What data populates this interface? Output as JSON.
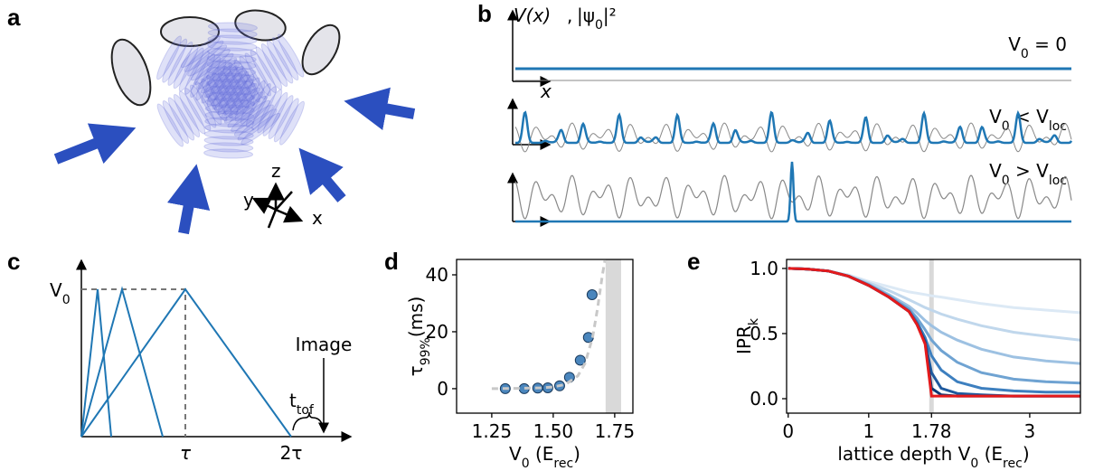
{
  "panels": {
    "a": {
      "label": "a",
      "axes": [
        "z",
        "y",
        "x"
      ]
    },
    "b": {
      "label": "b",
      "potential_label": "V(x)",
      "separator": ",",
      "density_label": [
        "|ψ",
        "0",
        "|²"
      ],
      "x_label": "x",
      "rows": [
        [
          "V",
          "0",
          " = 0"
        ],
        [
          "V",
          "0",
          " < V",
          "loc"
        ],
        [
          "V",
          "0",
          " > V",
          "loc"
        ]
      ]
    },
    "c": {
      "label": "c",
      "y_label": [
        "V",
        "0"
      ],
      "x_labels": [
        "τ",
        "2τ"
      ],
      "image_label": "Image",
      "tof_label": [
        "t",
        "tof"
      ]
    },
    "d": {
      "label": "d"
    },
    "e": {
      "label": "e"
    }
  },
  "chart_data": [
    {
      "type": "scatter",
      "x_label": [
        "V",
        "0",
        " (E",
        "rec",
        ")"
      ],
      "y_label": [
        "τ",
        "99%",
        "(ms)"
      ],
      "xlim": [
        1.107,
        1.824
      ],
      "ylim": [
        -8.6,
        45.4
      ],
      "xticks": [
        1.25,
        {
          "value": 1.5,
          "label": "1.50"
        },
        1.75
      ],
      "yticks": [
        0,
        20,
        40
      ],
      "band": [
        1.713,
        1.776
      ],
      "band_color": "#d9d9d9",
      "series": [
        {
          "color": "#4a86bd",
          "x": [
            1.305,
            1.382,
            1.437,
            1.478,
            1.526,
            1.566,
            1.61,
            1.643,
            1.658
          ],
          "values": [
            0,
            0,
            0.2,
            0.3,
            1,
            4,
            10,
            18,
            33
          ]
        },
        {
          "color": "#c8c8c8",
          "style": "dashed",
          "x": [
            1.25,
            1.35,
            1.45,
            1.5,
            1.55,
            1.6,
            1.63,
            1.66,
            1.68,
            1.7,
            1.71
          ],
          "values": [
            0,
            0.1,
            0.3,
            0.6,
            1.5,
            4.5,
            9,
            18,
            28,
            40,
            45
          ]
        }
      ]
    },
    {
      "type": "line",
      "x_label": [
        "lattice depth  V",
        "0",
        " (E",
        "rec",
        ")"
      ],
      "y_label": [
        "IPR",
        "k"
      ],
      "xlim": [
        -0.02,
        3.63
      ],
      "ylim": [
        -0.111,
        1.069
      ],
      "xticks": [
        0,
        1,
        1.78,
        3
      ],
      "yticks": [
        {
          "value": 0,
          "label": "0.0"
        },
        0.5,
        {
          "value": 1,
          "label": "1.0"
        }
      ],
      "marker_line": 1.78,
      "marker_color": "#d9d9d9",
      "x": [
        0,
        0.25,
        0.5,
        0.75,
        1,
        1.25,
        1.5,
        1.6,
        1.7,
        1.78,
        1.9,
        2.1,
        2.4,
        2.8,
        3.2,
        3.63
      ],
      "series": [
        {
          "color": "#dce9f5",
          "values": [
            1,
            0.995,
            0.98,
            0.95,
            0.9,
            0.86,
            0.82,
            0.81,
            0.8,
            0.79,
            0.78,
            0.76,
            0.73,
            0.7,
            0.68,
            0.66
          ]
        },
        {
          "color": "#c0d7ec",
          "values": [
            1,
            0.995,
            0.98,
            0.945,
            0.89,
            0.83,
            0.76,
            0.73,
            0.7,
            0.68,
            0.65,
            0.61,
            0.56,
            0.51,
            0.48,
            0.45
          ]
        },
        {
          "color": "#9dc1e2",
          "values": [
            1,
            0.995,
            0.98,
            0.94,
            0.88,
            0.8,
            0.71,
            0.66,
            0.6,
            0.56,
            0.51,
            0.45,
            0.38,
            0.32,
            0.29,
            0.27
          ]
        },
        {
          "color": "#6fa3d2",
          "values": [
            1,
            0.995,
            0.98,
            0.94,
            0.875,
            0.79,
            0.69,
            0.62,
            0.53,
            0.45,
            0.37,
            0.28,
            0.2,
            0.15,
            0.13,
            0.12
          ]
        },
        {
          "color": "#3d7fbf",
          "values": [
            1,
            0.995,
            0.98,
            0.94,
            0.87,
            0.78,
            0.675,
            0.59,
            0.47,
            0.33,
            0.22,
            0.13,
            0.08,
            0.06,
            0.05,
            0.05
          ]
        },
        {
          "color": "#1f5a9e",
          "values": [
            1,
            0.995,
            0.98,
            0.94,
            0.87,
            0.78,
            0.67,
            0.575,
            0.44,
            0.2,
            0.08,
            0.04,
            0.03,
            0.02,
            0.02,
            0.02
          ]
        },
        {
          "color": "#0d3a75",
          "values": [
            1,
            0.995,
            0.98,
            0.94,
            0.87,
            0.78,
            0.67,
            0.57,
            0.43,
            0.08,
            0.03,
            0.02,
            0.02,
            0.02,
            0.02,
            0.02
          ]
        },
        {
          "color": "#e41a1c",
          "values": [
            1,
            0.995,
            0.98,
            0.94,
            0.87,
            0.78,
            0.67,
            0.57,
            0.42,
            0.02,
            0.02,
            0.02,
            0.02,
            0.02,
            0.02,
            0.02
          ]
        }
      ]
    }
  ]
}
